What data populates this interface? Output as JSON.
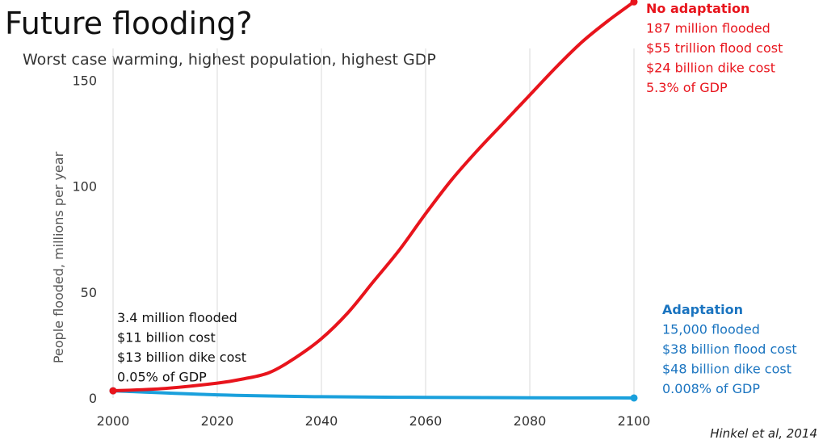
{
  "title": "Future flooding?",
  "subtitle": "Worst case warming,  highest population, highest GDP",
  "citation": "Hinkel et al, 2014",
  "chart_data": {
    "type": "line",
    "ylabel": "People flooded, millions per year",
    "xlabel": "",
    "xlim": [
      2000,
      2100
    ],
    "ylim": [
      0,
      165
    ],
    "xticks": [
      2000,
      2020,
      2040,
      2060,
      2080,
      2100
    ],
    "yticks": [
      0,
      50,
      100,
      150
    ],
    "grid": "vertical",
    "series": [
      {
        "name": "No adaptation",
        "color": "#e8141c",
        "x": [
          2000,
          2010,
          2020,
          2025,
          2030,
          2035,
          2040,
          2045,
          2050,
          2055,
          2060,
          2065,
          2070,
          2075,
          2080,
          2085,
          2090,
          2095,
          2100
        ],
        "y": [
          3.4,
          4.5,
          7,
          9,
          12,
          19,
          28,
          40,
          55,
          70,
          87,
          103,
          117,
          130,
          143,
          156,
          168,
          178,
          187
        ]
      },
      {
        "name": "Adaptation",
        "color": "#1aa0dc",
        "x": [
          2000,
          2020,
          2040,
          2060,
          2080,
          2100
        ],
        "y": [
          3.4,
          1.5,
          0.6,
          0.3,
          0.1,
          0.015
        ]
      }
    ],
    "annotations": {
      "start": {
        "color": "#111111",
        "lines": [
          "3.4 million flooded",
          "$11 billion cost",
          "$13 billion dike cost",
          "0.05% of GDP"
        ]
      },
      "no_adaptation": {
        "color": "#e8141c",
        "heading": "No adaptation",
        "lines": [
          "187 million flooded",
          "$55 trillion flood cost",
          "$24 billion dike cost",
          "5.3% of GDP"
        ]
      },
      "adaptation": {
        "color": "#1a74c0",
        "heading": "Adaptation",
        "lines": [
          "15,000 flooded",
          "$38 billion flood cost",
          "$48 billion dike cost",
          "0.008% of GDP"
        ]
      }
    }
  }
}
